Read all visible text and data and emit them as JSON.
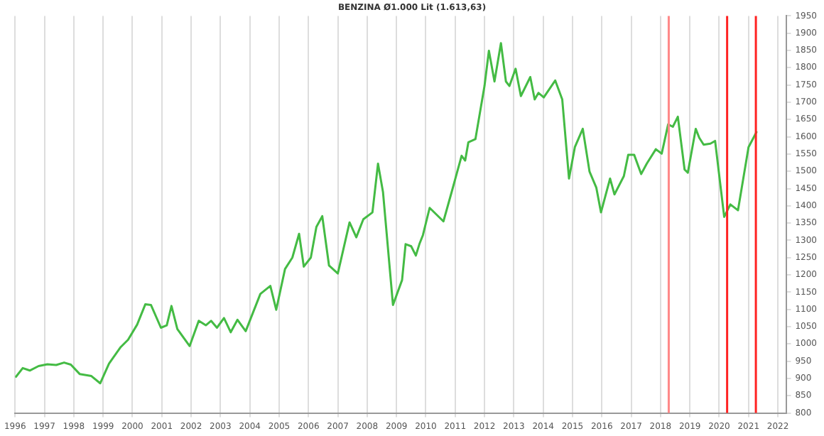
{
  "chart_data": {
    "type": "line",
    "title": "BENZINA Ø1.000 Lit (1.613,63)",
    "x": [
      1996.03,
      1996.26,
      1996.5,
      1996.8,
      1997.1,
      1997.4,
      1997.67,
      1997.9,
      1998.2,
      1998.6,
      1998.9,
      1999.2,
      1999.6,
      1999.85,
      2000.16,
      2000.44,
      2000.63,
      2000.97,
      2001.17,
      2001.33,
      2001.53,
      2001.95,
      2002.26,
      2002.5,
      2002.68,
      2002.88,
      2003.12,
      2003.35,
      2003.58,
      2003.86,
      2004.36,
      2004.7,
      2004.9,
      2005.2,
      2005.45,
      2005.68,
      2005.84,
      2006.08,
      2006.27,
      2006.47,
      2006.7,
      2007.0,
      2007.4,
      2007.63,
      2007.87,
      2008.18,
      2008.37,
      2008.54,
      2008.88,
      2009.19,
      2009.31,
      2009.5,
      2009.66,
      2009.78,
      2009.9,
      2010.13,
      2010.6,
      2010.9,
      2011.22,
      2011.34,
      2011.45,
      2011.69,
      2012.0,
      2012.15,
      2012.34,
      2012.56,
      2012.73,
      2012.85,
      2013.06,
      2013.24,
      2013.56,
      2013.71,
      2013.84,
      2014.02,
      2014.41,
      2014.65,
      2014.88,
      2015.08,
      2015.35,
      2015.58,
      2015.81,
      2015.97,
      2016.28,
      2016.43,
      2016.75,
      2016.9,
      2017.1,
      2017.34,
      2017.53,
      2017.84,
      2018.04,
      2018.26,
      2018.42,
      2018.59,
      2018.82,
      2018.93,
      2019.2,
      2019.32,
      2019.47,
      2019.7,
      2019.86,
      2020.17,
      2020.38,
      2020.64,
      2021.0,
      2021.27
    ],
    "series": [
      {
        "color": "#44bb44",
        "values": [
          905,
          930,
          923,
          936,
          941,
          939,
          946,
          940,
          913,
          907,
          886,
          943,
          991,
          1012,
          1056,
          1115,
          1113,
          1047,
          1054,
          1110,
          1043,
          994,
          1067,
          1054,
          1067,
          1047,
          1075,
          1034,
          1070,
          1037,
          1145,
          1168,
          1099,
          1217,
          1250,
          1319,
          1224,
          1250,
          1339,
          1370,
          1227,
          1204,
          1352,
          1309,
          1361,
          1381,
          1522,
          1440,
          1113,
          1185,
          1289,
          1283,
          1256,
          1289,
          1315,
          1394,
          1355,
          1446,
          1545,
          1531,
          1584,
          1593,
          1747,
          1849,
          1760,
          1871,
          1760,
          1747,
          1797,
          1718,
          1773,
          1708,
          1727,
          1714,
          1763,
          1708,
          1479,
          1570,
          1623,
          1499,
          1453,
          1381,
          1479,
          1433,
          1486,
          1548,
          1548,
          1492,
          1522,
          1564,
          1551,
          1636,
          1629,
          1658,
          1505,
          1496,
          1623,
          1597,
          1577,
          1580,
          1588,
          1368,
          1404,
          1387,
          1570,
          1613.63
        ]
      }
    ],
    "xlim": [
      1996,
      2022.3
    ],
    "xticks": [
      1996,
      1997,
      1998,
      1999,
      2000,
      2001,
      2002,
      2003,
      2004,
      2005,
      2006,
      2007,
      2008,
      2009,
      2010,
      2011,
      2012,
      2013,
      2014,
      2015,
      2016,
      2017,
      2018,
      2019,
      2020,
      2021,
      2022
    ],
    "ylim": [
      800,
      1950
    ],
    "yticks": [
      800,
      850,
      900,
      950,
      1000,
      1050,
      1100,
      1150,
      1200,
      1250,
      1300,
      1350,
      1400,
      1450,
      1500,
      1550,
      1600,
      1650,
      1700,
      1750,
      1800,
      1850,
      1900,
      1950
    ],
    "ref_lines": [
      {
        "axis": "x",
        "value": 2018.28,
        "color": "#ff8888"
      },
      {
        "axis": "x",
        "value": 2020.27,
        "color": "#ff2222"
      },
      {
        "axis": "x",
        "value": 2021.25,
        "color": "#ff2222"
      }
    ],
    "grid": "x",
    "legend": false,
    "marker": "none",
    "line_style": "solid"
  }
}
